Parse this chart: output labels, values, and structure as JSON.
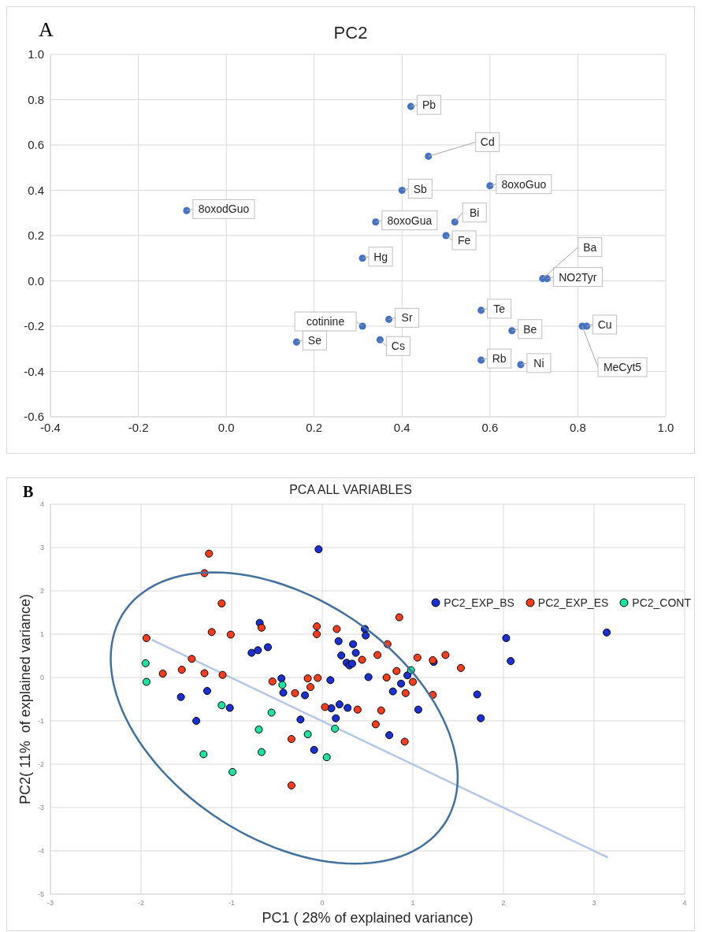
{
  "chart_data": [
    {
      "type": "scatter",
      "title": "PC2",
      "annotations": [
        "A"
      ],
      "xlim": [
        -0.4,
        1.0
      ],
      "xticks": [
        -0.4,
        -0.2,
        {
          "value": 0,
          "label": "0.0"
        },
        0.2,
        0.4,
        0.6,
        0.8,
        {
          "value": 1,
          "label": "1.0"
        }
      ],
      "ylim": [
        -0.6,
        1.0
      ],
      "yticks": [
        -0.6,
        -0.4,
        -0.2,
        {
          "value": 0,
          "label": "0.0"
        },
        0.2,
        0.4,
        0.6,
        0.8,
        {
          "value": 1,
          "label": "1.0"
        }
      ],
      "grid": true,
      "legend": false,
      "marker": "circle",
      "series": [
        {
          "name": "Pb",
          "color": "#4472c4",
          "x": [
            0.42
          ],
          "values": [
            0.77
          ]
        },
        {
          "name": "Cd",
          "color": "#4472c4",
          "x": [
            0.46
          ],
          "values": [
            0.55
          ]
        },
        {
          "name": "Sb",
          "color": "#4472c4",
          "x": [
            0.4
          ],
          "values": [
            0.4
          ]
        },
        {
          "name": "8oxoGuo",
          "color": "#4472c4",
          "x": [
            0.6
          ],
          "values": [
            0.42
          ]
        },
        {
          "name": "8oxodGuo",
          "color": "#4472c4",
          "x": [
            -0.09
          ],
          "values": [
            0.31
          ]
        },
        {
          "name": "8oxoGua",
          "color": "#4472c4",
          "x": [
            0.34
          ],
          "values": [
            0.26
          ]
        },
        {
          "name": "Bi",
          "color": "#4472c4",
          "x": [
            0.52
          ],
          "values": [
            0.26
          ]
        },
        {
          "name": "Fe",
          "color": "#4472c4",
          "x": [
            0.5
          ],
          "values": [
            0.2
          ]
        },
        {
          "name": "Hg",
          "color": "#4472c4",
          "x": [
            0.31
          ],
          "values": [
            0.1
          ]
        },
        {
          "name": "NO2Tyr",
          "color": "#4472c4",
          "x": [
            0.73
          ],
          "values": [
            0.01
          ]
        },
        {
          "name": "Ba",
          "color": "#4472c4",
          "x": [
            0.72
          ],
          "values": [
            0.01
          ]
        },
        {
          "name": "Te",
          "color": "#4472c4",
          "x": [
            0.58
          ],
          "values": [
            -0.13
          ]
        },
        {
          "name": "Sr",
          "color": "#4472c4",
          "x": [
            0.37
          ],
          "values": [
            -0.17
          ]
        },
        {
          "name": "cotinine",
          "color": "#4472c4",
          "x": [
            0.31
          ],
          "values": [
            -0.2
          ]
        },
        {
          "name": "Cs",
          "color": "#4472c4",
          "x": [
            0.35
          ],
          "values": [
            -0.26
          ]
        },
        {
          "name": "Se",
          "color": "#4472c4",
          "x": [
            0.16
          ],
          "values": [
            -0.27
          ]
        },
        {
          "name": "Be",
          "color": "#4472c4",
          "x": [
            0.65
          ],
          "values": [
            -0.22
          ]
        },
        {
          "name": "Cu",
          "color": "#4472c4",
          "x": [
            0.82
          ],
          "values": [
            -0.2
          ]
        },
        {
          "name": "MeCyt5",
          "color": "#4472c4",
          "x": [
            0.81
          ],
          "values": [
            -0.2
          ]
        },
        {
          "name": "Rb",
          "color": "#4472c4",
          "x": [
            0.58
          ],
          "values": [
            -0.35
          ]
        },
        {
          "name": "Ni",
          "color": "#4472c4",
          "x": [
            0.67
          ],
          "values": [
            -0.37
          ]
        }
      ]
    },
    {
      "type": "scatter",
      "title": "PCA ALL VARIABLES",
      "annotations": [
        "B"
      ],
      "xlabel": "PC1 ( 28% of explained variance)",
      "ylabel": "PC2( 11%  of explained variance)",
      "xlim": [
        -3,
        4
      ],
      "xticks": [
        -3,
        -2,
        -1,
        0,
        1,
        2,
        3,
        4
      ],
      "ylim": [
        -5,
        4
      ],
      "yticks": [
        -5,
        -4,
        -3,
        -2,
        -1,
        0,
        1,
        2,
        3,
        4
      ],
      "grid": true,
      "legend": "top right",
      "marker": "circle",
      "series": [
        {
          "name": "PC2_EXP_BS",
          "color": "#1a2fd4",
          "x": [
            -0.04,
            -0.69,
            -0.78,
            -0.71,
            -0.6,
            -0.45,
            -0.43,
            -0.19,
            0.09,
            0.18,
            0.21,
            0.27,
            0.3,
            0.33,
            0.34,
            0.37,
            0.47,
            0.48,
            -1.56,
            -1.27,
            -1.39,
            -1.02,
            -0.24,
            0.1,
            0.19,
            0.28,
            0.15,
            0.51,
            0.78,
            0.87,
            0.94,
            1.23,
            1.06,
            1.71,
            1.75,
            2.03,
            2.08,
            3.14,
            0.74,
            -0.09
          ],
          "values": [
            2.96,
            1.26,
            0.57,
            0.63,
            0.7,
            -0.02,
            -0.35,
            -0.41,
            -0.06,
            0.84,
            0.51,
            0.34,
            0.28,
            0.32,
            0.77,
            0.57,
            1.12,
            0.97,
            -0.45,
            -0.31,
            -1.0,
            -0.7,
            -0.97,
            -0.71,
            -0.62,
            -0.7,
            -0.94,
            0.01,
            -0.32,
            -0.14,
            0.05,
            0.36,
            -0.74,
            -0.39,
            -0.94,
            0.91,
            0.38,
            1.04,
            -1.33,
            -1.67
          ]
        },
        {
          "name": "PC2_EXP_ES",
          "color": "#f83c1c",
          "x": [
            -1.25,
            -1.3,
            -1.11,
            -1.22,
            -1.01,
            -1.94,
            -1.44,
            -1.55,
            -1.76,
            -1.3,
            -1.1,
            -0.67,
            -0.55,
            -0.3,
            -0.16,
            -0.13,
            -0.05,
            -0.06,
            -0.06,
            0.16,
            0.44,
            0.03,
            0.39,
            0.85,
            0.72,
            0.61,
            1.05,
            1.22,
            1.36,
            1.53,
            0.82,
            0.71,
            1.0,
            0.92,
            1.22,
            0.65,
            0.59,
            -0.34,
            -0.34,
            0.91
          ],
          "values": [
            2.86,
            2.41,
            1.71,
            1.05,
            0.99,
            0.91,
            0.43,
            0.18,
            0.09,
            0.1,
            0.06,
            1.15,
            -0.09,
            -0.36,
            -0.02,
            -0.22,
            -0.01,
            1.18,
            1.0,
            1.12,
            0.41,
            -0.68,
            -0.74,
            1.39,
            0.77,
            0.52,
            0.46,
            0.4,
            0.52,
            0.22,
            0.15,
            0.0,
            -0.1,
            -0.36,
            -0.4,
            -0.76,
            -1.08,
            -2.49,
            -1.42,
            -1.48
          ]
        },
        {
          "name": "PC2_CONT",
          "color": "#1ee3a0",
          "x": [
            -1.95,
            -1.94,
            -1.11,
            -0.44,
            -0.56,
            -0.7,
            0.14,
            0.98,
            -1.31,
            -0.99,
            -0.67,
            -0.16,
            0.05
          ],
          "values": [
            0.33,
            -0.1,
            -0.64,
            -0.17,
            -0.81,
            -1.2,
            -1.18,
            0.17,
            -1.77,
            -2.18,
            -1.72,
            -1.31,
            -1.84
          ]
        },
        {
          "type": "line",
          "marker": "none",
          "color": "#b4c7e7",
          "x": [
            -1.88,
            3.15
          ],
          "values": [
            0.87,
            -4.15
          ]
        }
      ]
    }
  ]
}
